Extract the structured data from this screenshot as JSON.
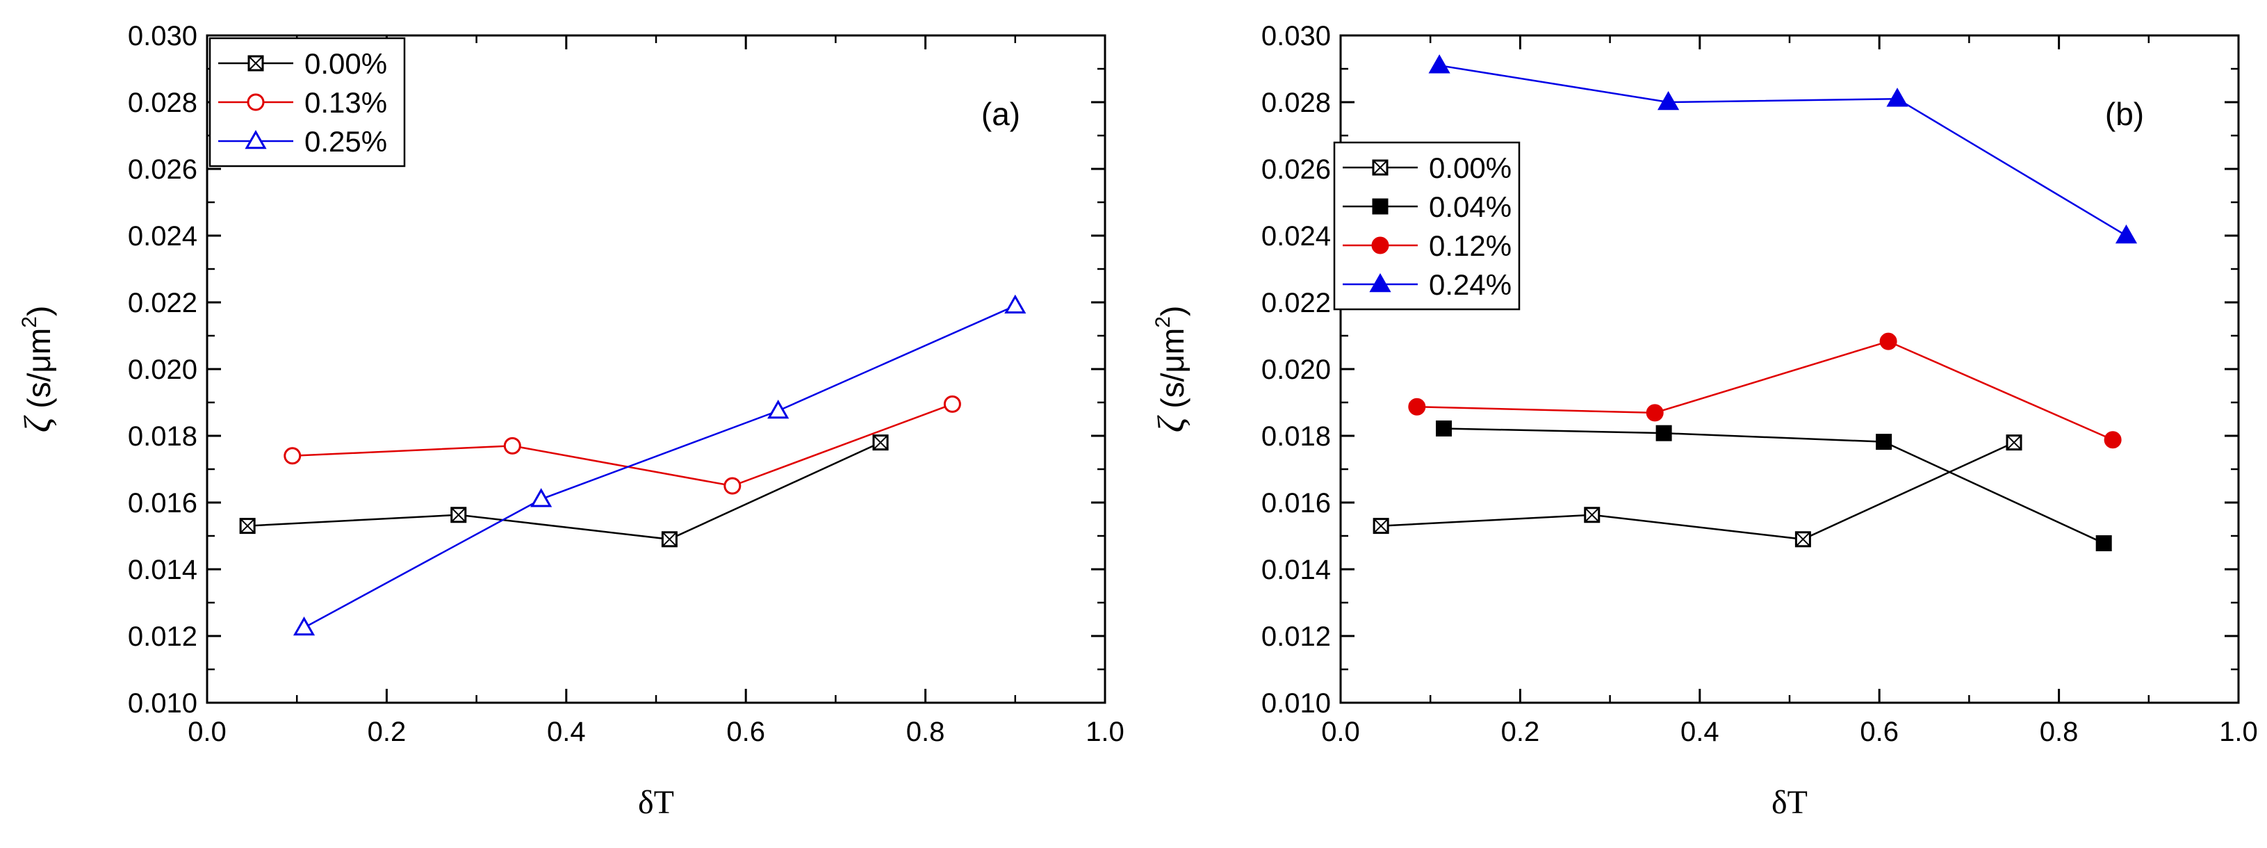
{
  "chart_data": [
    {
      "type": "line",
      "panel_label": "(a)",
      "xlabel": "δT",
      "ylabel": "ζ (s/μm²)",
      "ylabel_symbol": "ζ",
      "ylabel_unit_base": "(s/μm",
      "ylabel_unit_exp": "2",
      "ylabel_unit_close": ")",
      "xlim": [
        0.0,
        1.0
      ],
      "ylim": [
        0.01,
        0.03
      ],
      "xticks": [
        0.0,
        0.2,
        0.4,
        0.6,
        0.8,
        1.0
      ],
      "xtick_labels": [
        "0.0",
        "0.2",
        "0.4",
        "0.6",
        "0.8",
        "1.0"
      ],
      "yticks": [
        0.01,
        0.012,
        0.014,
        0.016,
        0.018,
        0.02,
        0.022,
        0.024,
        0.026,
        0.028,
        0.03
      ],
      "ytick_labels": [
        "0.010",
        "0.012",
        "0.014",
        "0.016",
        "0.018",
        "0.020",
        "0.022",
        "0.024",
        "0.026",
        "0.028",
        "0.030"
      ],
      "grid": false,
      "legend_position": "top-left",
      "series": [
        {
          "name": "0.00%",
          "color": "#000000",
          "marker": "square-x",
          "filled": false,
          "x": [
            0.045,
            0.28,
            0.515,
            0.75
          ],
          "y": [
            0.0153,
            0.01563,
            0.0149,
            0.0178
          ]
        },
        {
          "name": "0.13%",
          "color": "#e00000",
          "marker": "circle",
          "filled": false,
          "x": [
            0.095,
            0.34,
            0.585,
            0.83
          ],
          "y": [
            0.0174,
            0.0177,
            0.0165,
            0.01895
          ]
        },
        {
          "name": "0.25%",
          "color": "#0000e6",
          "marker": "triangle",
          "filled": false,
          "x": [
            0.108,
            0.372,
            0.636,
            0.9
          ],
          "y": [
            0.01225,
            0.0161,
            0.01875,
            0.0219
          ]
        }
      ]
    },
    {
      "type": "line",
      "panel_label": "(b)",
      "xlabel": "δT",
      "ylabel": "ζ (s/μm²)",
      "ylabel_symbol": "ζ",
      "ylabel_unit_base": "(s/μm",
      "ylabel_unit_exp": "2",
      "ylabel_unit_close": ")",
      "xlim": [
        0.0,
        1.0
      ],
      "ylim": [
        0.01,
        0.03
      ],
      "xticks": [
        0.0,
        0.2,
        0.4,
        0.6,
        0.8,
        1.0
      ],
      "xtick_labels": [
        "0.0",
        "0.2",
        "0.4",
        "0.6",
        "0.8",
        "1.0"
      ],
      "yticks": [
        0.01,
        0.012,
        0.014,
        0.016,
        0.018,
        0.02,
        0.022,
        0.024,
        0.026,
        0.028,
        0.03
      ],
      "ytick_labels": [
        "0.010",
        "0.012",
        "0.014",
        "0.016",
        "0.018",
        "0.020",
        "0.022",
        "0.024",
        "0.026",
        "0.028",
        "0.030"
      ],
      "grid": false,
      "legend_position": "upper-left",
      "series": [
        {
          "name": "0.00%",
          "color": "#000000",
          "marker": "square-x",
          "filled": false,
          "x": [
            0.045,
            0.28,
            0.515,
            0.75
          ],
          "y": [
            0.0153,
            0.01563,
            0.0149,
            0.0178
          ]
        },
        {
          "name": "0.04%",
          "color": "#000000",
          "marker": "square",
          "filled": true,
          "x": [
            0.115,
            0.36,
            0.605,
            0.85
          ],
          "y": [
            0.01822,
            0.01808,
            0.01782,
            0.01478
          ]
        },
        {
          "name": "0.12%",
          "color": "#e00000",
          "marker": "circle",
          "filled": true,
          "x": [
            0.085,
            0.35,
            0.61,
            0.86
          ],
          "y": [
            0.01887,
            0.01869,
            0.02083,
            0.01788
          ]
        },
        {
          "name": "0.24%",
          "color": "#0000e6",
          "marker": "triangle",
          "filled": true,
          "x": [
            0.11,
            0.365,
            0.62,
            0.875
          ],
          "y": [
            0.0291,
            0.028,
            0.0281,
            0.024
          ]
        }
      ]
    }
  ]
}
